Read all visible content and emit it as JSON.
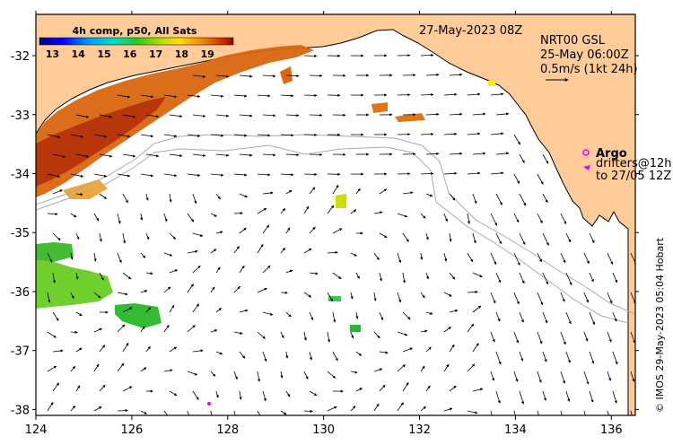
{
  "map": {
    "lon_range": [
      124,
      136.5
    ],
    "lat_range": [
      -38.1,
      -31.3
    ],
    "x_ticks": [
      124,
      126,
      128,
      130,
      132,
      134,
      136
    ],
    "x_tick_labels": [
      "124",
      "126",
      "128",
      "130",
      "132",
      "134",
      "136"
    ],
    "y_ticks": [
      -32,
      -33,
      -34,
      -35,
      -36,
      -37,
      -38
    ],
    "y_tick_labels": [
      "-32",
      "-33",
      "-34",
      "-35",
      "-36",
      "-37",
      "-38"
    ],
    "land_color": "#ffcc99",
    "ocean_color": "#ffffff"
  },
  "colorbar": {
    "title": "4h comp, p50, All Sats",
    "range": [
      12.5,
      20
    ],
    "ticks": [
      "13",
      "14",
      "15",
      "16",
      "17",
      "18",
      "19"
    ]
  },
  "header": {
    "timestamp": "27-May-2023 08Z",
    "product": "NRT00 GSL",
    "analysis_time": "25-May 06:00Z",
    "vector_scale": "0.5m/s (1kt 24h)"
  },
  "legend": {
    "argo_label": "Argo",
    "drifters_label": "drifters@12h",
    "drifters_to": "to 27/05 12Z",
    "argo_color": "#ee00ee",
    "drifter_color": "#ee00ee"
  },
  "credit": "© IMOS 29-May-2023 05:04 Hobart"
}
